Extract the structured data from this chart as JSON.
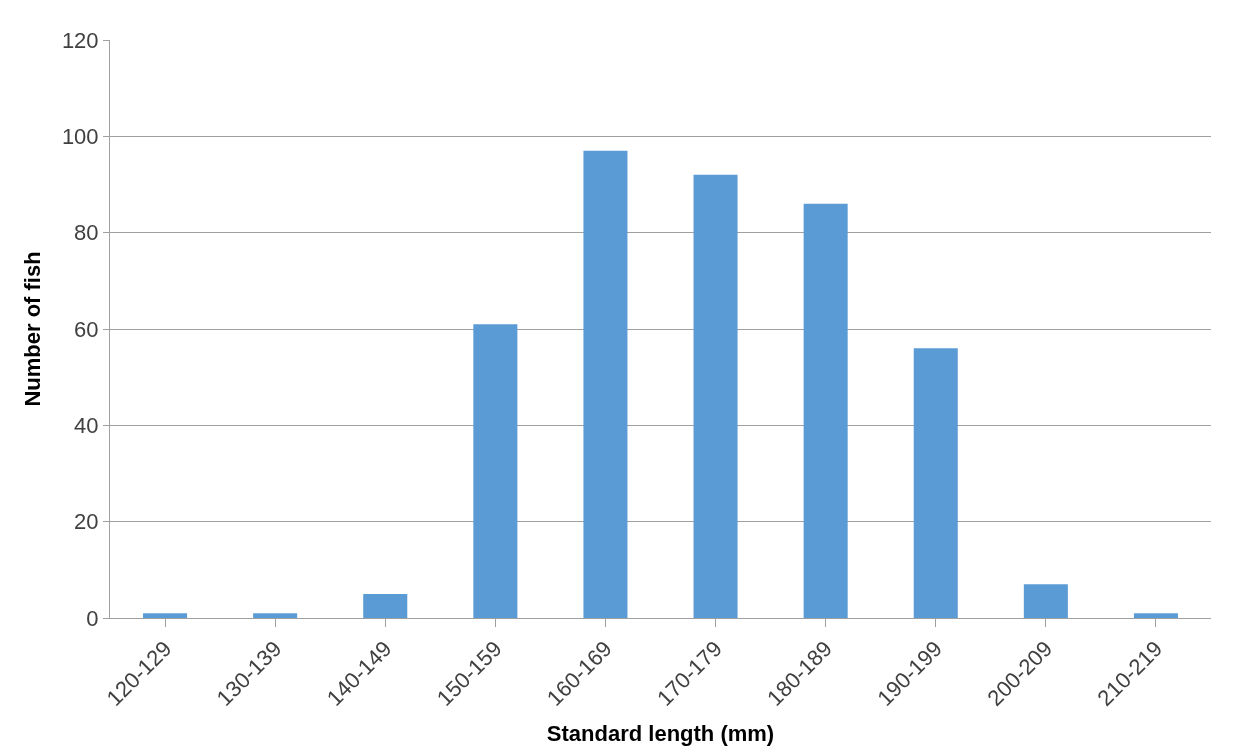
{
  "chart_data": {
    "type": "bar",
    "xlabel": "Standard length (mm)",
    "ylabel": "Number of fish",
    "categories": [
      "120-129",
      "130-139",
      "140-149",
      "150-159",
      "160-169",
      "170-179",
      "180-189",
      "190-199",
      "200-209",
      "210-219"
    ],
    "values": [
      1,
      1,
      5,
      61,
      97,
      92,
      86,
      56,
      7,
      1
    ],
    "color": "#5b9bd5",
    "ylim": [
      0,
      120
    ],
    "yticks": [
      0,
      20,
      40,
      60,
      80,
      100,
      120
    ],
    "grid": "y"
  }
}
